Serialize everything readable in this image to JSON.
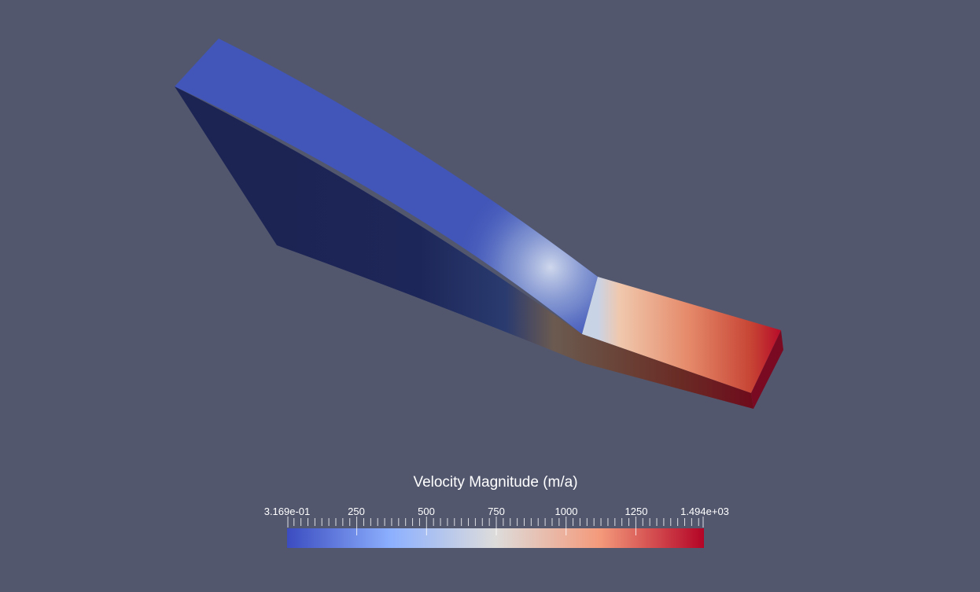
{
  "scalar_bar": {
    "title": "Velocity Magnitude (m/a)",
    "range": [
      0.3169,
      1494
    ],
    "tick_labels": [
      "3.169e-01",
      "250",
      "500",
      "750",
      "1000",
      "1250",
      "1.494e+03"
    ],
    "tick_values": [
      0.3169,
      250,
      500,
      750,
      1000,
      1250,
      1494
    ],
    "colormap": "Cool to Warm",
    "colors": [
      "#3b4cc0",
      "#8db0fe",
      "#dddcdb",
      "#f49a7b",
      "#b40426"
    ]
  },
  "background_color": "#52576e"
}
